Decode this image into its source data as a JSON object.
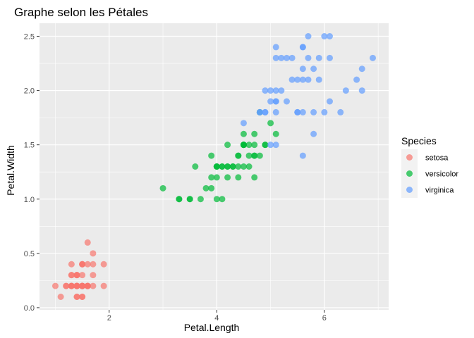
{
  "chart_data": {
    "type": "scatter",
    "title": "Graphe selon les Pétales",
    "xlabel": "Petal.Length",
    "ylabel": "Petal.Width",
    "xlim": [
      0.705,
      7.195
    ],
    "ylim": [
      -0.02,
      2.62
    ],
    "x_ticks": [
      2,
      4,
      6
    ],
    "x_tick_labels": [
      "2",
      "4",
      "6"
    ],
    "y_ticks": [
      0.0,
      0.5,
      1.0,
      1.5,
      2.0,
      2.5
    ],
    "y_tick_labels": [
      "0.0",
      "0.5",
      "1.0",
      "1.5",
      "2.0",
      "2.5"
    ],
    "grid": true,
    "panel_background": "#ebebeb",
    "point_alpha": 0.7,
    "legend": {
      "title": "Species",
      "position": "right",
      "entries": [
        "setosa",
        "versicolor",
        "virginica"
      ]
    },
    "series": [
      {
        "name": "setosa",
        "color": "#F8766D",
        "points": [
          [
            1.4,
            0.2
          ],
          [
            1.4,
            0.2
          ],
          [
            1.3,
            0.2
          ],
          [
            1.5,
            0.2
          ],
          [
            1.4,
            0.2
          ],
          [
            1.7,
            0.4
          ],
          [
            1.4,
            0.3
          ],
          [
            1.5,
            0.2
          ],
          [
            1.4,
            0.2
          ],
          [
            1.5,
            0.1
          ],
          [
            1.5,
            0.2
          ],
          [
            1.6,
            0.2
          ],
          [
            1.4,
            0.1
          ],
          [
            1.1,
            0.1
          ],
          [
            1.2,
            0.2
          ],
          [
            1.5,
            0.4
          ],
          [
            1.3,
            0.4
          ],
          [
            1.4,
            0.3
          ],
          [
            1.7,
            0.3
          ],
          [
            1.5,
            0.3
          ],
          [
            1.7,
            0.2
          ],
          [
            1.5,
            0.4
          ],
          [
            1.0,
            0.2
          ],
          [
            1.7,
            0.5
          ],
          [
            1.9,
            0.2
          ],
          [
            1.6,
            0.2
          ],
          [
            1.6,
            0.4
          ],
          [
            1.5,
            0.2
          ],
          [
            1.4,
            0.2
          ],
          [
            1.6,
            0.2
          ],
          [
            1.6,
            0.2
          ],
          [
            1.5,
            0.4
          ],
          [
            1.5,
            0.1
          ],
          [
            1.4,
            0.2
          ],
          [
            1.5,
            0.2
          ],
          [
            1.2,
            0.2
          ],
          [
            1.3,
            0.2
          ],
          [
            1.4,
            0.1
          ],
          [
            1.3,
            0.2
          ],
          [
            1.5,
            0.2
          ],
          [
            1.3,
            0.3
          ],
          [
            1.3,
            0.3
          ],
          [
            1.3,
            0.2
          ],
          [
            1.6,
            0.6
          ],
          [
            1.9,
            0.4
          ],
          [
            1.4,
            0.3
          ],
          [
            1.6,
            0.2
          ],
          [
            1.4,
            0.2
          ],
          [
            1.5,
            0.2
          ],
          [
            1.4,
            0.2
          ]
        ]
      },
      {
        "name": "versicolor",
        "color": "#00BA38",
        "points": [
          [
            4.7,
            1.4
          ],
          [
            4.5,
            1.5
          ],
          [
            4.9,
            1.5
          ],
          [
            4.0,
            1.3
          ],
          [
            4.6,
            1.5
          ],
          [
            4.5,
            1.3
          ],
          [
            4.7,
            1.6
          ],
          [
            3.3,
            1.0
          ],
          [
            4.6,
            1.3
          ],
          [
            3.9,
            1.4
          ],
          [
            3.5,
            1.0
          ],
          [
            4.2,
            1.5
          ],
          [
            4.0,
            1.0
          ],
          [
            4.7,
            1.4
          ],
          [
            3.6,
            1.3
          ],
          [
            4.4,
            1.4
          ],
          [
            4.5,
            1.5
          ],
          [
            4.1,
            1.0
          ],
          [
            4.5,
            1.5
          ],
          [
            3.9,
            1.1
          ],
          [
            4.8,
            1.8
          ],
          [
            4.0,
            1.3
          ],
          [
            4.9,
            1.5
          ],
          [
            4.7,
            1.2
          ],
          [
            4.3,
            1.3
          ],
          [
            4.4,
            1.4
          ],
          [
            4.8,
            1.4
          ],
          [
            5.0,
            1.7
          ],
          [
            4.5,
            1.5
          ],
          [
            3.5,
            1.0
          ],
          [
            3.8,
            1.1
          ],
          [
            3.7,
            1.0
          ],
          [
            3.9,
            1.2
          ],
          [
            5.1,
            1.6
          ],
          [
            4.5,
            1.5
          ],
          [
            4.5,
            1.6
          ],
          [
            4.7,
            1.5
          ],
          [
            4.4,
            1.3
          ],
          [
            4.1,
            1.3
          ],
          [
            4.0,
            1.3
          ],
          [
            4.4,
            1.2
          ],
          [
            4.6,
            1.4
          ],
          [
            4.0,
            1.2
          ],
          [
            3.3,
            1.0
          ],
          [
            4.2,
            1.3
          ],
          [
            4.2,
            1.2
          ],
          [
            4.2,
            1.3
          ],
          [
            4.3,
            1.3
          ],
          [
            3.0,
            1.1
          ],
          [
            4.1,
            1.3
          ]
        ]
      },
      {
        "name": "virginica",
        "color": "#619CFF",
        "points": [
          [
            6.0,
            2.5
          ],
          [
            5.1,
            1.9
          ],
          [
            5.9,
            2.1
          ],
          [
            5.6,
            1.8
          ],
          [
            5.8,
            2.2
          ],
          [
            6.6,
            2.1
          ],
          [
            4.5,
            1.7
          ],
          [
            6.3,
            1.8
          ],
          [
            5.8,
            1.8
          ],
          [
            6.1,
            2.5
          ],
          [
            5.1,
            2.0
          ],
          [
            5.3,
            1.9
          ],
          [
            5.5,
            2.1
          ],
          [
            5.0,
            2.0
          ],
          [
            5.1,
            2.4
          ],
          [
            5.3,
            2.3
          ],
          [
            5.5,
            1.8
          ],
          [
            6.7,
            2.2
          ],
          [
            6.9,
            2.3
          ],
          [
            5.0,
            1.5
          ],
          [
            5.7,
            2.3
          ],
          [
            4.9,
            2.0
          ],
          [
            6.7,
            2.0
          ],
          [
            4.9,
            1.8
          ],
          [
            5.7,
            2.1
          ],
          [
            6.0,
            1.8
          ],
          [
            4.8,
            1.8
          ],
          [
            4.9,
            1.8
          ],
          [
            5.6,
            2.1
          ],
          [
            5.8,
            1.6
          ],
          [
            6.1,
            1.9
          ],
          [
            6.4,
            2.0
          ],
          [
            5.6,
            2.2
          ],
          [
            5.1,
            1.5
          ],
          [
            5.6,
            1.4
          ],
          [
            6.1,
            2.3
          ],
          [
            5.6,
            2.4
          ],
          [
            5.5,
            1.8
          ],
          [
            4.8,
            1.8
          ],
          [
            5.4,
            2.1
          ],
          [
            5.6,
            2.4
          ],
          [
            5.1,
            2.3
          ],
          [
            5.1,
            1.9
          ],
          [
            5.9,
            2.3
          ],
          [
            5.7,
            2.5
          ],
          [
            5.2,
            2.3
          ],
          [
            5.0,
            1.9
          ],
          [
            5.2,
            2.0
          ],
          [
            5.4,
            2.3
          ],
          [
            5.1,
            1.8
          ]
        ]
      }
    ]
  }
}
